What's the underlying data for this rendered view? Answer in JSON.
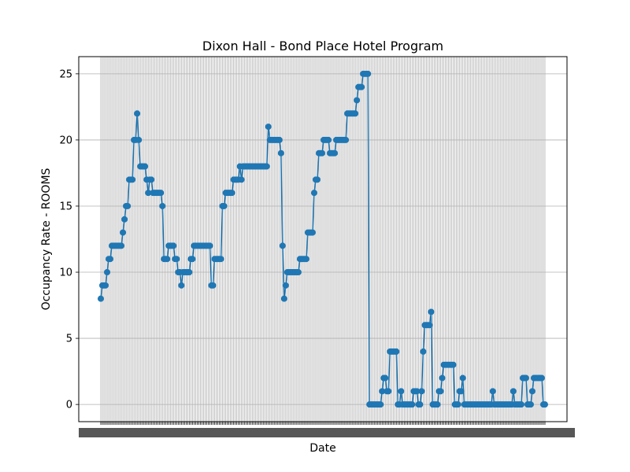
{
  "chart_data": {
    "type": "line",
    "title": "Dixon Hall - Bond Place Hotel Program",
    "xlabel": "Date",
    "ylabel": "Occupancy Rate - ROOMS",
    "ylim": [
      -1.3,
      26.3
    ],
    "yticks": [
      0,
      5,
      10,
      15,
      20,
      25
    ],
    "grid": true,
    "marker": "circle",
    "series_color": "#1f77b4",
    "series": [
      {
        "name": "Occupancy Rate - ROOMS",
        "values": [
          8,
          9,
          9,
          9,
          10,
          11,
          11,
          12,
          12,
          12,
          12,
          12,
          12,
          12,
          13,
          14,
          15,
          15,
          17,
          17,
          17,
          20,
          20,
          22,
          20,
          18,
          18,
          18,
          18,
          17,
          16,
          17,
          17,
          16,
          16,
          16,
          16,
          16,
          16,
          15,
          11,
          11,
          11,
          12,
          12,
          12,
          12,
          11,
          11,
          10,
          10,
          9,
          10,
          10,
          10,
          10,
          10,
          11,
          11,
          12,
          12,
          12,
          12,
          12,
          12,
          12,
          12,
          12,
          12,
          12,
          9,
          9,
          11,
          11,
          11,
          11,
          11,
          15,
          15,
          16,
          16,
          16,
          16,
          16,
          17,
          17,
          17,
          17,
          18,
          17,
          18,
          18,
          18,
          18,
          18,
          18,
          18,
          18,
          18,
          18,
          18,
          18,
          18,
          18,
          18,
          18,
          21,
          20,
          20,
          20,
          20,
          20,
          20,
          20,
          19,
          12,
          8,
          9,
          10,
          10,
          10,
          10,
          10,
          10,
          10,
          10,
          11,
          11,
          11,
          11,
          11,
          13,
          13,
          13,
          13,
          16,
          17,
          17,
          19,
          19,
          19,
          20,
          20,
          20,
          20,
          19,
          19,
          19,
          19,
          20,
          20,
          20,
          20,
          20,
          20,
          20,
          22,
          22,
          22,
          22,
          22,
          22,
          23,
          24,
          24,
          24,
          25,
          25,
          25,
          25,
          0,
          0,
          0,
          0,
          0,
          0,
          0,
          0,
          1,
          2,
          2,
          1,
          1,
          4,
          4,
          4,
          4,
          4,
          0,
          0,
          1,
          0,
          0,
          0,
          0,
          0,
          0,
          0,
          1,
          1,
          1,
          0,
          0,
          1,
          4,
          6,
          6,
          6,
          6,
          7,
          0,
          0,
          0,
          0,
          1,
          1,
          2,
          3,
          3,
          3,
          3,
          3,
          3,
          3,
          0,
          0,
          0,
          1,
          1,
          2,
          0,
          0,
          0,
          0,
          0,
          0,
          0,
          0,
          0,
          0,
          0,
          0,
          0,
          0,
          0,
          0,
          0,
          0,
          1,
          0,
          0,
          0,
          0,
          0,
          0,
          0,
          0,
          0,
          0,
          0,
          0,
          1,
          0,
          0,
          0,
          0,
          0,
          2,
          2,
          2,
          0,
          0,
          0,
          1,
          2,
          2,
          2,
          2,
          2,
          2,
          0,
          0
        ]
      }
    ]
  }
}
